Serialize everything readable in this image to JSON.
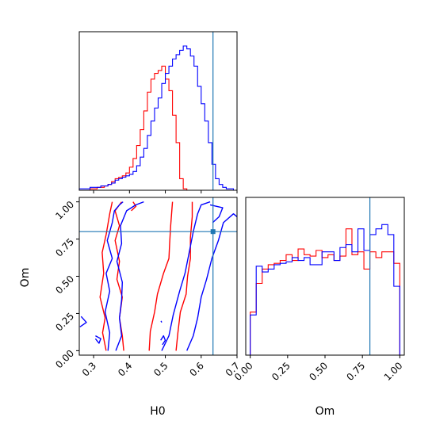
{
  "colors": {
    "series_a": "#ff0000",
    "series_b": "#0000ff",
    "truth": "#1f77b4",
    "frame": "#000000"
  },
  "chart_data": [
    {
      "type": "histogram",
      "panel": "H0 marginal",
      "xlim": [
        0.26,
        0.7
      ],
      "x_tick_labels_shown": false,
      "truth_x": 0.633,
      "bin_edges": [
        0.26,
        0.27,
        0.28,
        0.29,
        0.3,
        0.31,
        0.32,
        0.33,
        0.34,
        0.35,
        0.36,
        0.37,
        0.38,
        0.39,
        0.4,
        0.41,
        0.42,
        0.43,
        0.44,
        0.45,
        0.46,
        0.47,
        0.48,
        0.49,
        0.5,
        0.51,
        0.52,
        0.53,
        0.54,
        0.55,
        0.56,
        0.57,
        0.58,
        0.59,
        0.6,
        0.61,
        0.62,
        0.63,
        0.64,
        0.65,
        0.66,
        0.67,
        0.68,
        0.69,
        0.7
      ],
      "series": [
        {
          "color": "red",
          "values": [
            0,
            0,
            0,
            0.01,
            0.01,
            0.02,
            0.02,
            0.03,
            0.04,
            0.06,
            0.08,
            0.09,
            0.1,
            0.12,
            0.16,
            0.22,
            0.31,
            0.42,
            0.55,
            0.68,
            0.77,
            0.81,
            0.83,
            0.86,
            0.77,
            0.69,
            0.52,
            0.33,
            0.08,
            0.01,
            0,
            0,
            0,
            0,
            0,
            0,
            0,
            0,
            0,
            0,
            0,
            0,
            0,
            0
          ]
        },
        {
          "color": "blue",
          "values": [
            0.01,
            0.01,
            0.01,
            0.02,
            0.02,
            0.02,
            0.03,
            0.03,
            0.04,
            0.05,
            0.07,
            0.08,
            0.09,
            0.1,
            0.11,
            0.13,
            0.17,
            0.23,
            0.29,
            0.38,
            0.48,
            0.57,
            0.64,
            0.74,
            0.81,
            0.86,
            0.91,
            0.94,
            0.97,
            1.0,
            0.98,
            0.93,
            0.86,
            0.72,
            0.6,
            0.48,
            0.33,
            0.18,
            0.08,
            0.04,
            0.02,
            0.01,
            0.01,
            0.0
          ]
        }
      ]
    },
    {
      "type": "contour",
      "panel": "H0 vs Om joint",
      "xlabel": "H0",
      "ylabel": "Om",
      "xlim": [
        0.26,
        0.7
      ],
      "ylim": [
        -0.03,
        1.03
      ],
      "x_tick_labels": [
        "0.3",
        "0.4",
        "0.5",
        "0.6",
        "0.7"
      ],
      "x_tick_values": [
        0.3,
        0.4,
        0.5,
        0.6,
        0.7
      ],
      "y_tick_labels": [
        "0.00",
        "0.25",
        "0.50",
        "0.75",
        "1.00"
      ],
      "y_tick_values": [
        0,
        0.25,
        0.5,
        0.75,
        1.0
      ],
      "truth": {
        "x": 0.633,
        "y": 0.8
      },
      "series": [
        {
          "color": "red",
          "contours": [
            [
              [
                0.335,
                0.0
              ],
              [
                0.325,
                0.12
              ],
              [
                0.332,
                0.22
              ],
              [
                0.318,
                0.36
              ],
              [
                0.328,
                0.52
              ],
              [
                0.324,
                0.66
              ],
              [
                0.335,
                0.78
              ],
              [
                0.345,
                0.92
              ],
              [
                0.352,
                1.0
              ]
            ],
            [
              [
                0.384,
                0.0
              ],
              [
                0.38,
                0.1
              ],
              [
                0.372,
                0.22
              ],
              [
                0.38,
                0.36
              ],
              [
                0.365,
                0.48
              ],
              [
                0.372,
                0.6
              ],
              [
                0.36,
                0.74
              ],
              [
                0.372,
                0.84
              ],
              [
                0.36,
                0.94
              ],
              [
                0.378,
                1.0
              ]
            ],
            [
              [
                0.455,
                0.0
              ],
              [
                0.458,
                0.13
              ],
              [
                0.47,
                0.26
              ],
              [
                0.478,
                0.38
              ],
              [
                0.495,
                0.52
              ],
              [
                0.51,
                0.62
              ],
              [
                0.512,
                0.72
              ],
              [
                0.515,
                0.84
              ],
              [
                0.52,
                1.0
              ]
            ],
            [
              [
                0.53,
                0.0
              ],
              [
                0.535,
                0.12
              ],
              [
                0.542,
                0.26
              ],
              [
                0.558,
                0.38
              ],
              [
                0.562,
                0.5
              ],
              [
                0.57,
                0.62
              ],
              [
                0.57,
                0.76
              ],
              [
                0.575,
                0.9
              ],
              [
                0.575,
                1.0
              ]
            ],
            [
              [
                0.405,
                0.94
              ],
              [
                0.418,
                0.97
              ],
              [
                0.41,
                1.0
              ]
            ]
          ]
        },
        {
          "color": "blue",
          "contours": [
            [
              [
                0.265,
                0.23
              ],
              [
                0.28,
                0.19
              ],
              [
                0.262,
                0.16
              ]
            ],
            [
              [
                0.305,
                0.1
              ],
              [
                0.32,
                0.08
              ],
              [
                0.315,
                0.05
              ],
              [
                0.305,
                0.08
              ]
            ],
            [
              [
                0.34,
                0.0
              ],
              [
                0.345,
                0.12
              ],
              [
                0.332,
                0.26
              ],
              [
                0.345,
                0.4
              ],
              [
                0.335,
                0.52
              ],
              [
                0.352,
                0.62
              ],
              [
                0.338,
                0.74
              ],
              [
                0.352,
                0.86
              ],
              [
                0.358,
                0.94
              ],
              [
                0.372,
                0.98
              ],
              [
                0.382,
                1.0
              ]
            ],
            [
              [
                0.362,
                0.0
              ],
              [
                0.378,
                0.1
              ],
              [
                0.372,
                0.22
              ],
              [
                0.378,
                0.34
              ],
              [
                0.38,
                0.46
              ],
              [
                0.365,
                0.6
              ],
              [
                0.378,
                0.72
              ],
              [
                0.375,
                0.84
              ],
              [
                0.392,
                0.94
              ],
              [
                0.418,
                0.98
              ],
              [
                0.44,
                1.0
              ]
            ],
            [
              [
                0.49,
                0.0
              ],
              [
                0.51,
                0.1
              ],
              [
                0.522,
                0.24
              ],
              [
                0.54,
                0.4
              ],
              [
                0.555,
                0.52
              ],
              [
                0.565,
                0.64
              ],
              [
                0.578,
                0.8
              ],
              [
                0.59,
                0.92
              ],
              [
                0.6,
                0.98
              ],
              [
                0.625,
                1.0
              ]
            ],
            [
              [
                0.56,
                0.0
              ],
              [
                0.578,
                0.1
              ],
              [
                0.59,
                0.22
              ],
              [
                0.6,
                0.36
              ],
              [
                0.615,
                0.48
              ],
              [
                0.63,
                0.62
              ],
              [
                0.648,
                0.74
              ],
              [
                0.662,
                0.86
              ],
              [
                0.69,
                0.92
              ],
              [
                0.7,
                0.9
              ]
            ],
            [
              [
                0.625,
                0.98
              ],
              [
                0.66,
                0.96
              ],
              [
                0.65,
                0.9
              ],
              [
                0.632,
                0.86
              ]
            ],
            [
              [
                0.487,
                0.07
              ],
              [
                0.495,
                0.1
              ],
              [
                0.5,
                0.07
              ],
              [
                0.492,
                0.04
              ]
            ],
            [
              [
                0.488,
                0.2
              ],
              [
                0.49,
                0.19
              ]
            ]
          ]
        }
      ]
    },
    {
      "type": "histogram",
      "panel": "Om marginal",
      "xlabel": "Om",
      "xlim": [
        -0.03,
        1.03
      ],
      "x_tick_labels": [
        "0.00",
        "0.25",
        "0.50",
        "0.75",
        "1.00"
      ],
      "x_tick_values": [
        0,
        0.25,
        0.5,
        0.75,
        1.0
      ],
      "truth_x": 0.8,
      "bin_edges": [
        0.0,
        0.04,
        0.08,
        0.12,
        0.16,
        0.2,
        0.24,
        0.28,
        0.32,
        0.36,
        0.4,
        0.44,
        0.48,
        0.52,
        0.56,
        0.6,
        0.64,
        0.68,
        0.72,
        0.76,
        0.8,
        0.84,
        0.88,
        0.92,
        0.96,
        1.0
      ],
      "series": [
        {
          "color": "red",
          "values": [
            0.3,
            0.5,
            0.6,
            0.63,
            0.64,
            0.66,
            0.7,
            0.66,
            0.74,
            0.7,
            0.69,
            0.73,
            0.68,
            0.7,
            0.66,
            0.69,
            0.88,
            0.7,
            0.72,
            0.6,
            0.72,
            0.68,
            0.72,
            0.72,
            0.64
          ]
        },
        {
          "color": "blue",
          "values": [
            0.28,
            0.62,
            0.58,
            0.6,
            0.63,
            0.64,
            0.65,
            0.68,
            0.66,
            0.68,
            0.63,
            0.63,
            0.72,
            0.72,
            0.66,
            0.75,
            0.77,
            0.72,
            0.88,
            0.73,
            0.84,
            0.88,
            0.91,
            0.84,
            0.48
          ]
        }
      ]
    }
  ]
}
